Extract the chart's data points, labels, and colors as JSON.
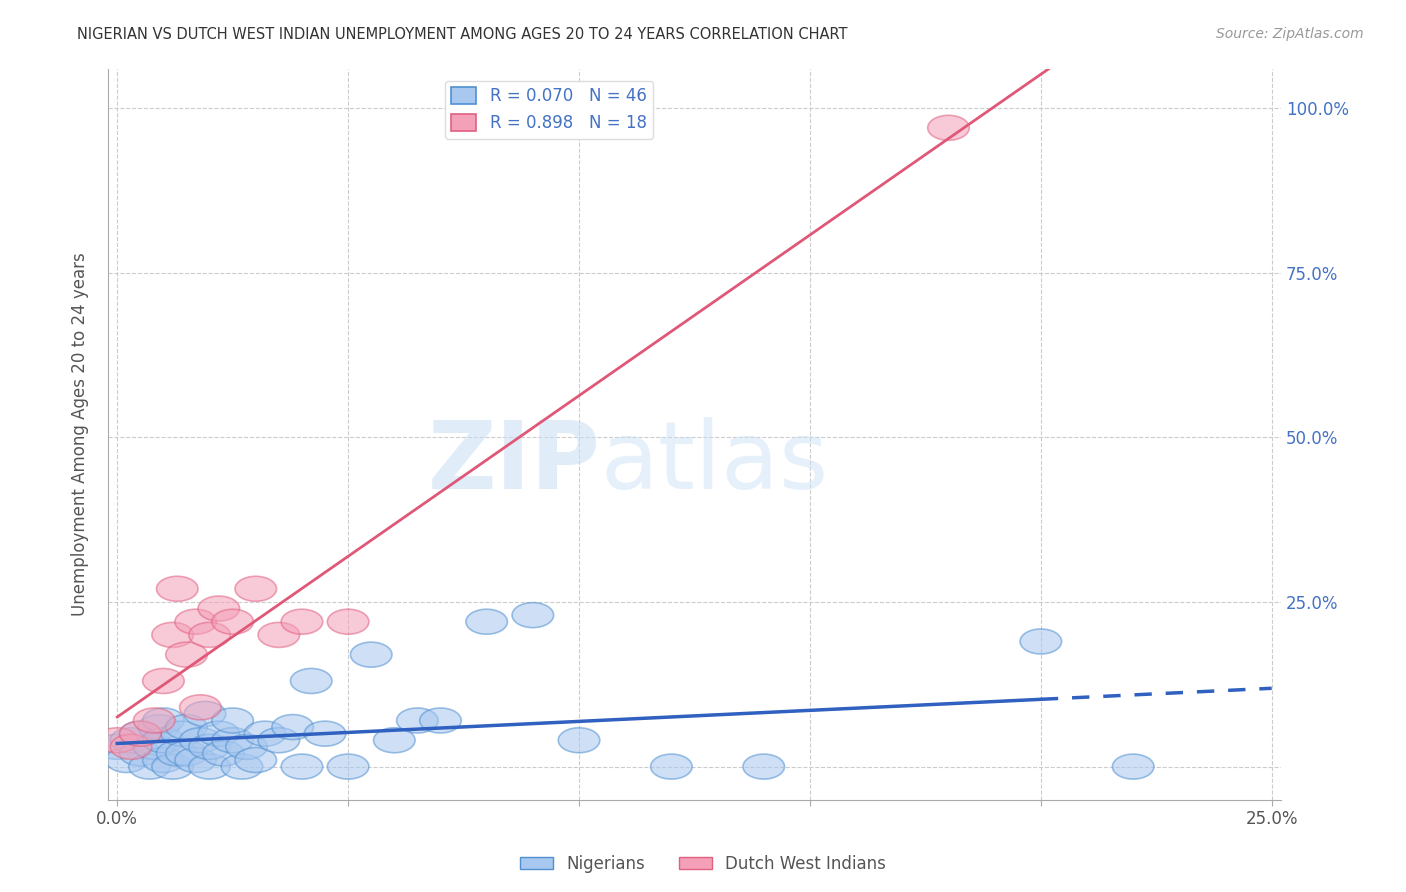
{
  "title": "NIGERIAN VS DUTCH WEST INDIAN UNEMPLOYMENT AMONG AGES 20 TO 24 YEARS CORRELATION CHART",
  "source": "Source: ZipAtlas.com",
  "ylabel": "Unemployment Among Ages 20 to 24 years",
  "xlim": [
    -0.002,
    0.252
  ],
  "ylim": [
    -0.05,
    1.06
  ],
  "xticks": [
    0.0,
    0.05,
    0.1,
    0.15,
    0.2,
    0.25
  ],
  "yticks": [
    0.0,
    0.25,
    0.5,
    0.75,
    1.0
  ],
  "nigerian_R": 0.07,
  "nigerian_N": 46,
  "dutch_R": 0.898,
  "dutch_N": 18,
  "nigerian_color": "#A8C8F0",
  "dutch_color": "#F4A0B8",
  "nigerian_edge_color": "#5090D0",
  "dutch_edge_color": "#E06080",
  "nigerian_line_color": "#3060C0",
  "dutch_line_color": "#E05878",
  "background_color": "#FFFFFF",
  "watermark_zip": "ZIP",
  "watermark_atlas": "atlas",
  "nigerian_x": [
    0.0,
    0.002,
    0.003,
    0.005,
    0.005,
    0.007,
    0.008,
    0.009,
    0.01,
    0.01,
    0.01,
    0.012,
    0.013,
    0.014,
    0.015,
    0.015,
    0.017,
    0.018,
    0.019,
    0.02,
    0.02,
    0.022,
    0.023,
    0.025,
    0.025,
    0.027,
    0.028,
    0.03,
    0.032,
    0.035,
    0.038,
    0.04,
    0.042,
    0.045,
    0.05,
    0.055,
    0.06,
    0.065,
    0.07,
    0.08,
    0.09,
    0.1,
    0.12,
    0.14,
    0.2,
    0.22
  ],
  "nigerian_y": [
    0.03,
    0.01,
    0.04,
    0.02,
    0.05,
    0.0,
    0.03,
    0.06,
    0.01,
    0.04,
    0.07,
    0.0,
    0.02,
    0.05,
    0.02,
    0.06,
    0.01,
    0.04,
    0.08,
    0.0,
    0.03,
    0.05,
    0.02,
    0.04,
    0.07,
    0.0,
    0.03,
    0.01,
    0.05,
    0.04,
    0.06,
    0.0,
    0.13,
    0.05,
    0.0,
    0.17,
    0.04,
    0.07,
    0.07,
    0.22,
    0.23,
    0.04,
    0.0,
    0.0,
    0.19,
    0.0
  ],
  "dutch_x": [
    0.0,
    0.003,
    0.005,
    0.008,
    0.01,
    0.012,
    0.013,
    0.015,
    0.017,
    0.018,
    0.02,
    0.022,
    0.025,
    0.03,
    0.035,
    0.04,
    0.05,
    0.18
  ],
  "dutch_y": [
    0.04,
    0.03,
    0.05,
    0.07,
    0.13,
    0.2,
    0.27,
    0.17,
    0.22,
    0.09,
    0.2,
    0.24,
    0.22,
    0.27,
    0.2,
    0.22,
    0.22,
    0.97
  ]
}
